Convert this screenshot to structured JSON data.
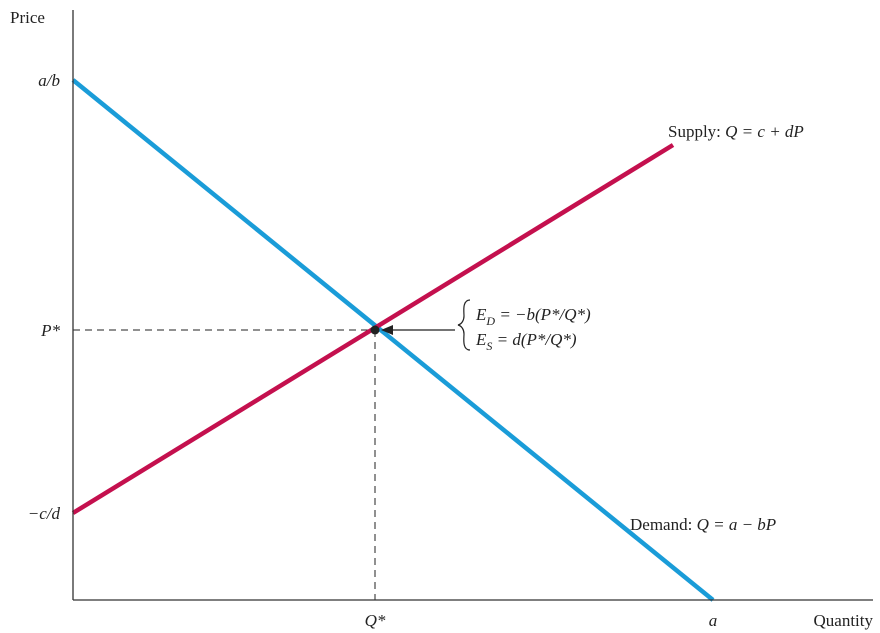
{
  "chart_data": {
    "type": "line",
    "title": "",
    "xlabel": "Quantity",
    "ylabel": "Price",
    "grid": false,
    "legend": "none",
    "x_ticks": [
      {
        "label": "Q*",
        "value": 302
      },
      {
        "label": "a",
        "value": 640
      }
    ],
    "y_ticks": [
      {
        "label": "a/b",
        "value": 520
      },
      {
        "label": "P*",
        "value": 270
      },
      {
        "label": "−c/d",
        "value": 87
      }
    ],
    "xlim": [
      0,
      800
    ],
    "ylim": [
      0,
      590
    ],
    "series": [
      {
        "name": "Demand",
        "color": "#1a9cd8",
        "x": [
          0,
          640
        ],
        "y": [
          520,
          0
        ],
        "label_prefix": "Demand: ",
        "label_formula": "Q = a − bP"
      },
      {
        "name": "Supply",
        "color": "#c4104e",
        "x": [
          0,
          600
        ],
        "y": [
          87,
          455
        ],
        "label_prefix": "Supply: ",
        "label_formula": "Q  = c + dP"
      }
    ],
    "equilibrium": {
      "x": 302,
      "y": 270
    },
    "annotation": {
      "line1": "E_D = −b(P*/Q*)",
      "line2": "E_S = d(P*/Q*)"
    }
  }
}
